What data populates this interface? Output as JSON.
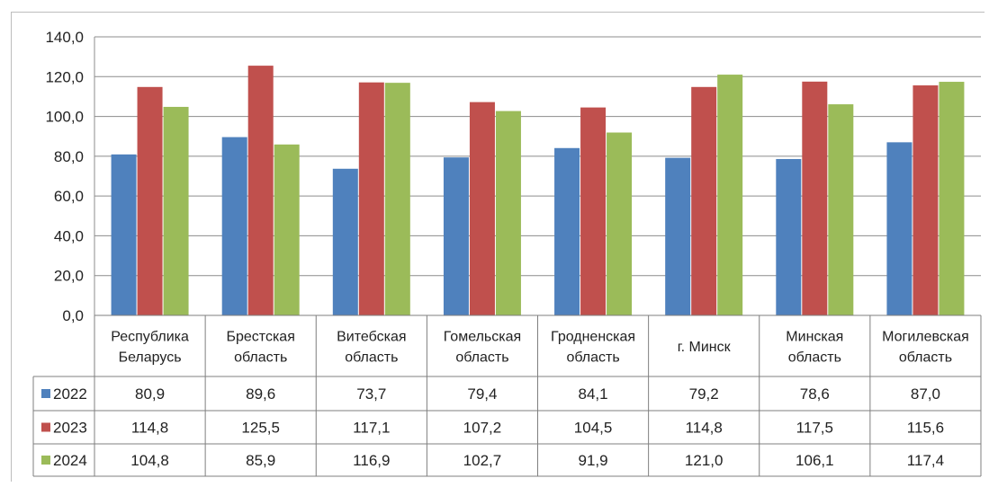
{
  "chart_data": {
    "type": "bar",
    "title": "",
    "xlabel": "",
    "ylabel": "",
    "ylim": [
      0,
      140
    ],
    "y_ticks": [
      "0,0",
      "20,0",
      "40,0",
      "60,0",
      "80,0",
      "100,0",
      "120,0",
      "140,0"
    ],
    "y_tick_values": [
      0,
      20,
      40,
      60,
      80,
      100,
      120,
      140
    ],
    "grid": true,
    "legend": "data-table",
    "categories": [
      [
        "Республика",
        "Беларусь"
      ],
      [
        "Брестская",
        "область"
      ],
      [
        "Витебская",
        "область"
      ],
      [
        "Гомельская",
        "область"
      ],
      [
        "Гродненская",
        "область"
      ],
      [
        "г. Минск"
      ],
      [
        "Минская",
        "область"
      ],
      [
        "Могилевская",
        "область"
      ]
    ],
    "series": [
      {
        "name": "2022",
        "color": "#4f81bd",
        "values": [
          80.9,
          89.6,
          73.7,
          79.4,
          84.1,
          79.2,
          78.6,
          87.0
        ],
        "labels": [
          "80,9",
          "89,6",
          "73,7",
          "79,4",
          "84,1",
          "79,2",
          "78,6",
          "87,0"
        ]
      },
      {
        "name": "2023",
        "color": "#c0504d",
        "values": [
          114.8,
          125.5,
          117.1,
          107.2,
          104.5,
          114.8,
          117.5,
          115.6
        ],
        "labels": [
          "114,8",
          "125,5",
          "117,1",
          "107,2",
          "104,5",
          "114,8",
          "117,5",
          "115,6"
        ]
      },
      {
        "name": "2024",
        "color": "#9bbb59",
        "values": [
          104.8,
          85.9,
          116.9,
          102.7,
          91.9,
          121.0,
          106.1,
          117.4
        ],
        "labels": [
          "104,8",
          "85,9",
          "116,9",
          "102,7",
          "91,9",
          "121,0",
          "106,1",
          "117,4"
        ]
      }
    ]
  }
}
